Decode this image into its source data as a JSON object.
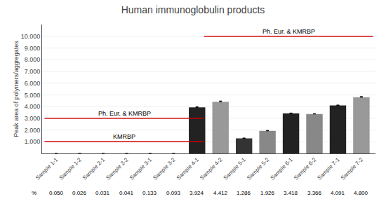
{
  "chart_data": {
    "type": "bar",
    "title": "Human immunoglobulin products",
    "ylabel": "Peak area of polymers/aggregates",
    "categories": [
      "Sample 1-1",
      "Sample 1-2",
      "Sample 2-1",
      "Sample 2-2",
      "Sample 3-1",
      "Sample 3-2",
      "Sample 4-1",
      "Sample 4-2",
      "Sample 5-1",
      "Sample 5-2",
      "Sample 6-1",
      "Sample 6-2",
      "Sample 7-1",
      "Sample 7-2"
    ],
    "values": [
      0.05,
      0.026,
      0.031,
      0.041,
      0.133,
      0.093,
      3924,
      4412,
      1286,
      1926,
      3418,
      3366,
      4091,
      4800
    ],
    "colors": [
      "#444444",
      "#444444",
      "#444444",
      "#444444",
      "#444444",
      "#444444",
      "#222222",
      "#999999",
      "#333333",
      "#888888",
      "#222222",
      "#888888",
      "#222222",
      "#999999"
    ],
    "errors": [
      0,
      0,
      0,
      0,
      0,
      0,
      80,
      60,
      30,
      40,
      30,
      30,
      40,
      50
    ],
    "pct_labels": [
      "0.050",
      "0.026",
      "0.031",
      "0.041",
      "0.133",
      "0.093",
      "3.924",
      "4.412",
      "1.286",
      "1.926",
      "3.418",
      "3.366",
      "4.091",
      "4.800"
    ],
    "row_label": "%",
    "reference_lines": [
      {
        "y": 1000,
        "label": "KMRBP",
        "color": "#cc0000",
        "x_start": -0.5,
        "x_end": 6.3
      },
      {
        "y": 3000,
        "label": "Ph. Eur. & KMRBP",
        "color": "#cc0000",
        "x_start": -0.5,
        "x_end": 6.3
      },
      {
        "y": 10000,
        "label": "Ph. Eur. & KMRBP",
        "color": "#cc0000",
        "x_start": 6.3,
        "x_end": 13.5
      }
    ],
    "ylim": [
      0,
      11000
    ],
    "yticks": [
      {
        "value": 1000,
        "label": "1.000"
      },
      {
        "value": 2000,
        "label": "2.000"
      },
      {
        "value": 3000,
        "label": "3.000"
      },
      {
        "value": 4000,
        "label": "4.000"
      },
      {
        "value": 5000,
        "label": "5.000"
      },
      {
        "value": 6000,
        "label": "6.000"
      },
      {
        "value": 7000,
        "label": "7.000"
      },
      {
        "value": 8000,
        "label": "8.000"
      },
      {
        "value": 9000,
        "label": "9.000"
      },
      {
        "value": 10000,
        "label": "10.000"
      }
    ],
    "grid": true
  }
}
